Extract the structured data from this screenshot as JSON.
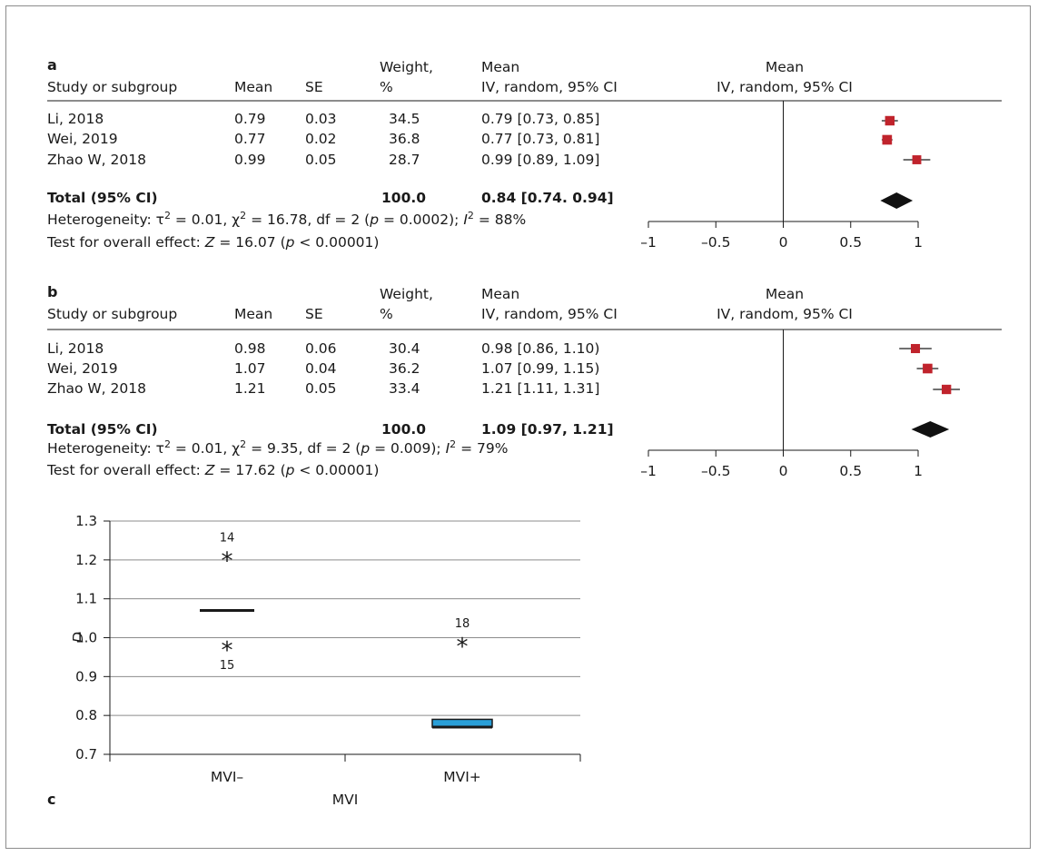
{
  "panels": [
    {
      "letter": "a",
      "headers": {
        "study": "Study or subgroup",
        "mean": "Mean",
        "se": "SE",
        "weight_line1": "Weight,",
        "weight_line2": "%",
        "ci_line1": "Mean",
        "ci_line2": "IV, random, 95% CI",
        "plot_line1": "Mean",
        "plot_line2": "IV, random, 95% CI"
      },
      "studies": [
        {
          "name": "Li, 2018",
          "mean": "0.79",
          "se": "0.03",
          "weight": "34.5",
          "ci_text": "0.79 [0.73, 0.85]",
          "est": 0.79,
          "lo": 0.73,
          "hi": 0.85,
          "w": 34.5
        },
        {
          "name": "Wei, 2019",
          "mean": "0.77",
          "se": "0.02",
          "weight": "36.8",
          "ci_text": "0.77 [0.73, 0.81]",
          "est": 0.77,
          "lo": 0.73,
          "hi": 0.81,
          "w": 36.8
        },
        {
          "name": "Zhao W, 2018",
          "mean": "0.99",
          "se": "0.05",
          "weight": "28.7",
          "ci_text": "0.99 [0.89, 1.09]",
          "est": 0.99,
          "lo": 0.89,
          "hi": 1.09,
          "w": 28.7
        }
      ],
      "total": {
        "label": "Total (95% CI)",
        "weight": "100.0",
        "ci_text": "0.84 [0.74. 0.94]",
        "est": 0.84,
        "lo": 0.74,
        "hi": 0.94
      },
      "heterogeneity": {
        "prefix": "Heterogeneity: τ",
        "sup1": "2",
        "mid": " = 0.01, χ",
        "sup2": "2",
        "mid2": " = 16.78, df = 2 (",
        "p": "p",
        "p_val": " = 0.0002); ",
        "i": "I",
        "sup3": "2",
        "end": " = 88%"
      },
      "overall": {
        "prefix": "Test for overall effect: ",
        "z": "Z",
        "z_val": " = 16.07 (",
        "p": "p",
        "p_val": " < 0.00001)"
      },
      "axis": {
        "min": -1,
        "max": 1,
        "ticks": [
          "–1",
          "–0.5",
          "0",
          "0.5",
          "1"
        ]
      }
    },
    {
      "letter": "b",
      "headers": {
        "study": "Study or subgroup",
        "mean": "Mean",
        "se": "SE",
        "weight_line1": "Weight,",
        "weight_line2": "%",
        "ci_line1": "Mean",
        "ci_line2": "IV, random, 95% CI",
        "plot_line1": "Mean",
        "plot_line2": "IV, random, 95% CI"
      },
      "studies": [
        {
          "name": "Li, 2018",
          "mean": "0.98",
          "se": "0.06",
          "weight": "30.4",
          "ci_text": "0.98 [0.86, 1.10)",
          "est": 0.98,
          "lo": 0.86,
          "hi": 1.1,
          "w": 30.4
        },
        {
          "name": "Wei, 2019",
          "mean": "1.07",
          "se": "0.04",
          "weight": "36.2",
          "ci_text": "1.07 [0.99, 1.15)",
          "est": 1.07,
          "lo": 0.99,
          "hi": 1.15,
          "w": 36.2
        },
        {
          "name": "Zhao W, 2018",
          "mean": "1.21",
          "se": "0.05",
          "weight": "33.4",
          "ci_text": "1.21 [1.11, 1.31]",
          "est": 1.21,
          "lo": 1.11,
          "hi": 1.31,
          "w": 33.4
        }
      ],
      "total": {
        "label": "Total (95% CI)",
        "weight": "100.0",
        "ci_text": "1.09 [0.97, 1.21]",
        "est": 1.09,
        "lo": 0.97,
        "hi": 1.21
      },
      "heterogeneity": {
        "prefix": "Heterogeneity: τ",
        "sup1": "2",
        "mid": " = 0.01, χ",
        "sup2": "2",
        "mid2": " = 9.35, df = 2 (",
        "p": "p",
        "p_val": " = 0.009); ",
        "i": "I",
        "sup3": "2",
        "end": " = 79%"
      },
      "overall": {
        "prefix": "Test for overall effect: ",
        "z": "Z",
        "z_val": " = 17.62 (",
        "p": "p",
        "p_val": " < 0.00001)"
      },
      "axis": {
        "min": -1,
        "max": 1,
        "ticks": [
          "–1",
          "–0.5",
          "0",
          "0.5",
          "1"
        ]
      }
    }
  ],
  "panel_c": {
    "letter": "c",
    "ylabel": "D",
    "xlabel": "MVI",
    "categories": [
      "MVI–",
      "MVI+"
    ],
    "ylim": [
      0.7,
      1.3
    ],
    "yticks": [
      "0.7",
      "0.8",
      "0.9",
      "1.0",
      "1.1",
      "1.2",
      "1.3"
    ],
    "grid": true,
    "groups": [
      {
        "category": "MVI–",
        "median": 1.07,
        "box": null,
        "outliers": [
          {
            "value": 1.21,
            "label": "14",
            "label_pos": "above"
          },
          {
            "value": 0.98,
            "label": "15",
            "label_pos": "below"
          }
        ]
      },
      {
        "category": "MVI+",
        "median": 0.77,
        "box": [
          0.77,
          0.79
        ],
        "outliers": [
          {
            "value": 0.99,
            "label": "18",
            "label_pos": "above"
          }
        ]
      }
    ]
  },
  "colors": {
    "square": "#c0232c",
    "diamond": "#111111",
    "box": "#2a9fd8",
    "line": "#1a1a1a",
    "grid": "#8c8c8c"
  },
  "chart_data": [
    {
      "type": "forest",
      "title": "a",
      "categories": [
        "Li, 2018",
        "Wei, 2019",
        "Zhao W, 2018",
        "Total (95% CI)"
      ],
      "values": [
        0.79,
        0.77,
        0.99,
        0.84
      ],
      "ci_low": [
        0.73,
        0.73,
        0.89,
        0.74
      ],
      "ci_high": [
        0.85,
        0.81,
        1.09,
        0.94
      ],
      "weights": [
        34.5,
        36.8,
        28.7,
        100.0
      ],
      "xlim": [
        -1,
        1
      ]
    },
    {
      "type": "forest",
      "title": "b",
      "categories": [
        "Li, 2018",
        "Wei, 2019",
        "Zhao W, 2018",
        "Total (95% CI)"
      ],
      "values": [
        0.98,
        1.07,
        1.21,
        1.09
      ],
      "ci_low": [
        0.86,
        0.99,
        1.11,
        0.97
      ],
      "ci_high": [
        1.1,
        1.15,
        1.31,
        1.21
      ],
      "weights": [
        30.4,
        36.2,
        33.4,
        100.0
      ],
      "xlim": [
        -1,
        1
      ]
    },
    {
      "type": "boxplot",
      "title": "c",
      "categories": [
        "MVI–",
        "MVI+"
      ],
      "medians": [
        1.07,
        0.77
      ],
      "outliers": [
        [
          1.21,
          0.98
        ],
        [
          0.99
        ]
      ],
      "xlabel": "MVI",
      "ylabel": "D",
      "ylim": [
        0.7,
        1.3
      ]
    }
  ]
}
